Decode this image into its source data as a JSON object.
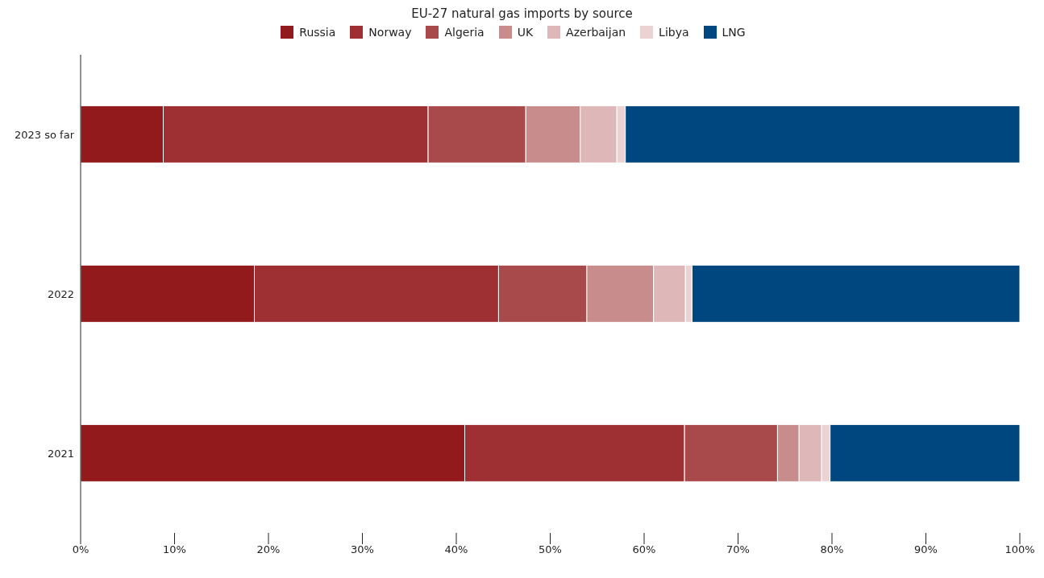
{
  "chart_data": {
    "type": "bar",
    "orientation": "horizontal",
    "stacked": true,
    "title": "EU-27 natural gas imports by source",
    "categories": [
      "2023 so far",
      "2022",
      "2021"
    ],
    "series": [
      {
        "name": "Russia",
        "color": "#921a1d",
        "values": [
          8.8,
          18.5,
          40.9
        ]
      },
      {
        "name": "Norway",
        "color": "#9e2f33",
        "values": [
          28.2,
          26.0,
          23.4
        ]
      },
      {
        "name": "Algeria",
        "color": "#a84a4c",
        "values": [
          10.4,
          9.4,
          9.9
        ]
      },
      {
        "name": "UK",
        "color": "#c78c8b",
        "values": [
          5.8,
          7.1,
          2.3
        ]
      },
      {
        "name": "Azerbaijan",
        "color": "#deb8b8",
        "values": [
          3.9,
          3.4,
          2.4
        ]
      },
      {
        "name": "Libya",
        "color": "#ebd3d3",
        "values": [
          0.9,
          0.7,
          0.9
        ]
      },
      {
        "name": "LNG",
        "color": "#00467f",
        "values": [
          42.0,
          34.9,
          20.2
        ]
      }
    ],
    "xlim": [
      0,
      100
    ],
    "xticks": [
      {
        "value": 0,
        "label": "0%"
      },
      {
        "value": 10,
        "label": "10%"
      },
      {
        "value": 20,
        "label": "20%"
      },
      {
        "value": 30,
        "label": "30%"
      },
      {
        "value": 40,
        "label": "40%"
      },
      {
        "value": 50,
        "label": "50%"
      },
      {
        "value": 60,
        "label": "60%"
      },
      {
        "value": 70,
        "label": "70%"
      },
      {
        "value": 80,
        "label": "80%"
      },
      {
        "value": 90,
        "label": "90%"
      },
      {
        "value": 100,
        "label": "100%"
      }
    ],
    "grid": false,
    "legend": "top"
  }
}
